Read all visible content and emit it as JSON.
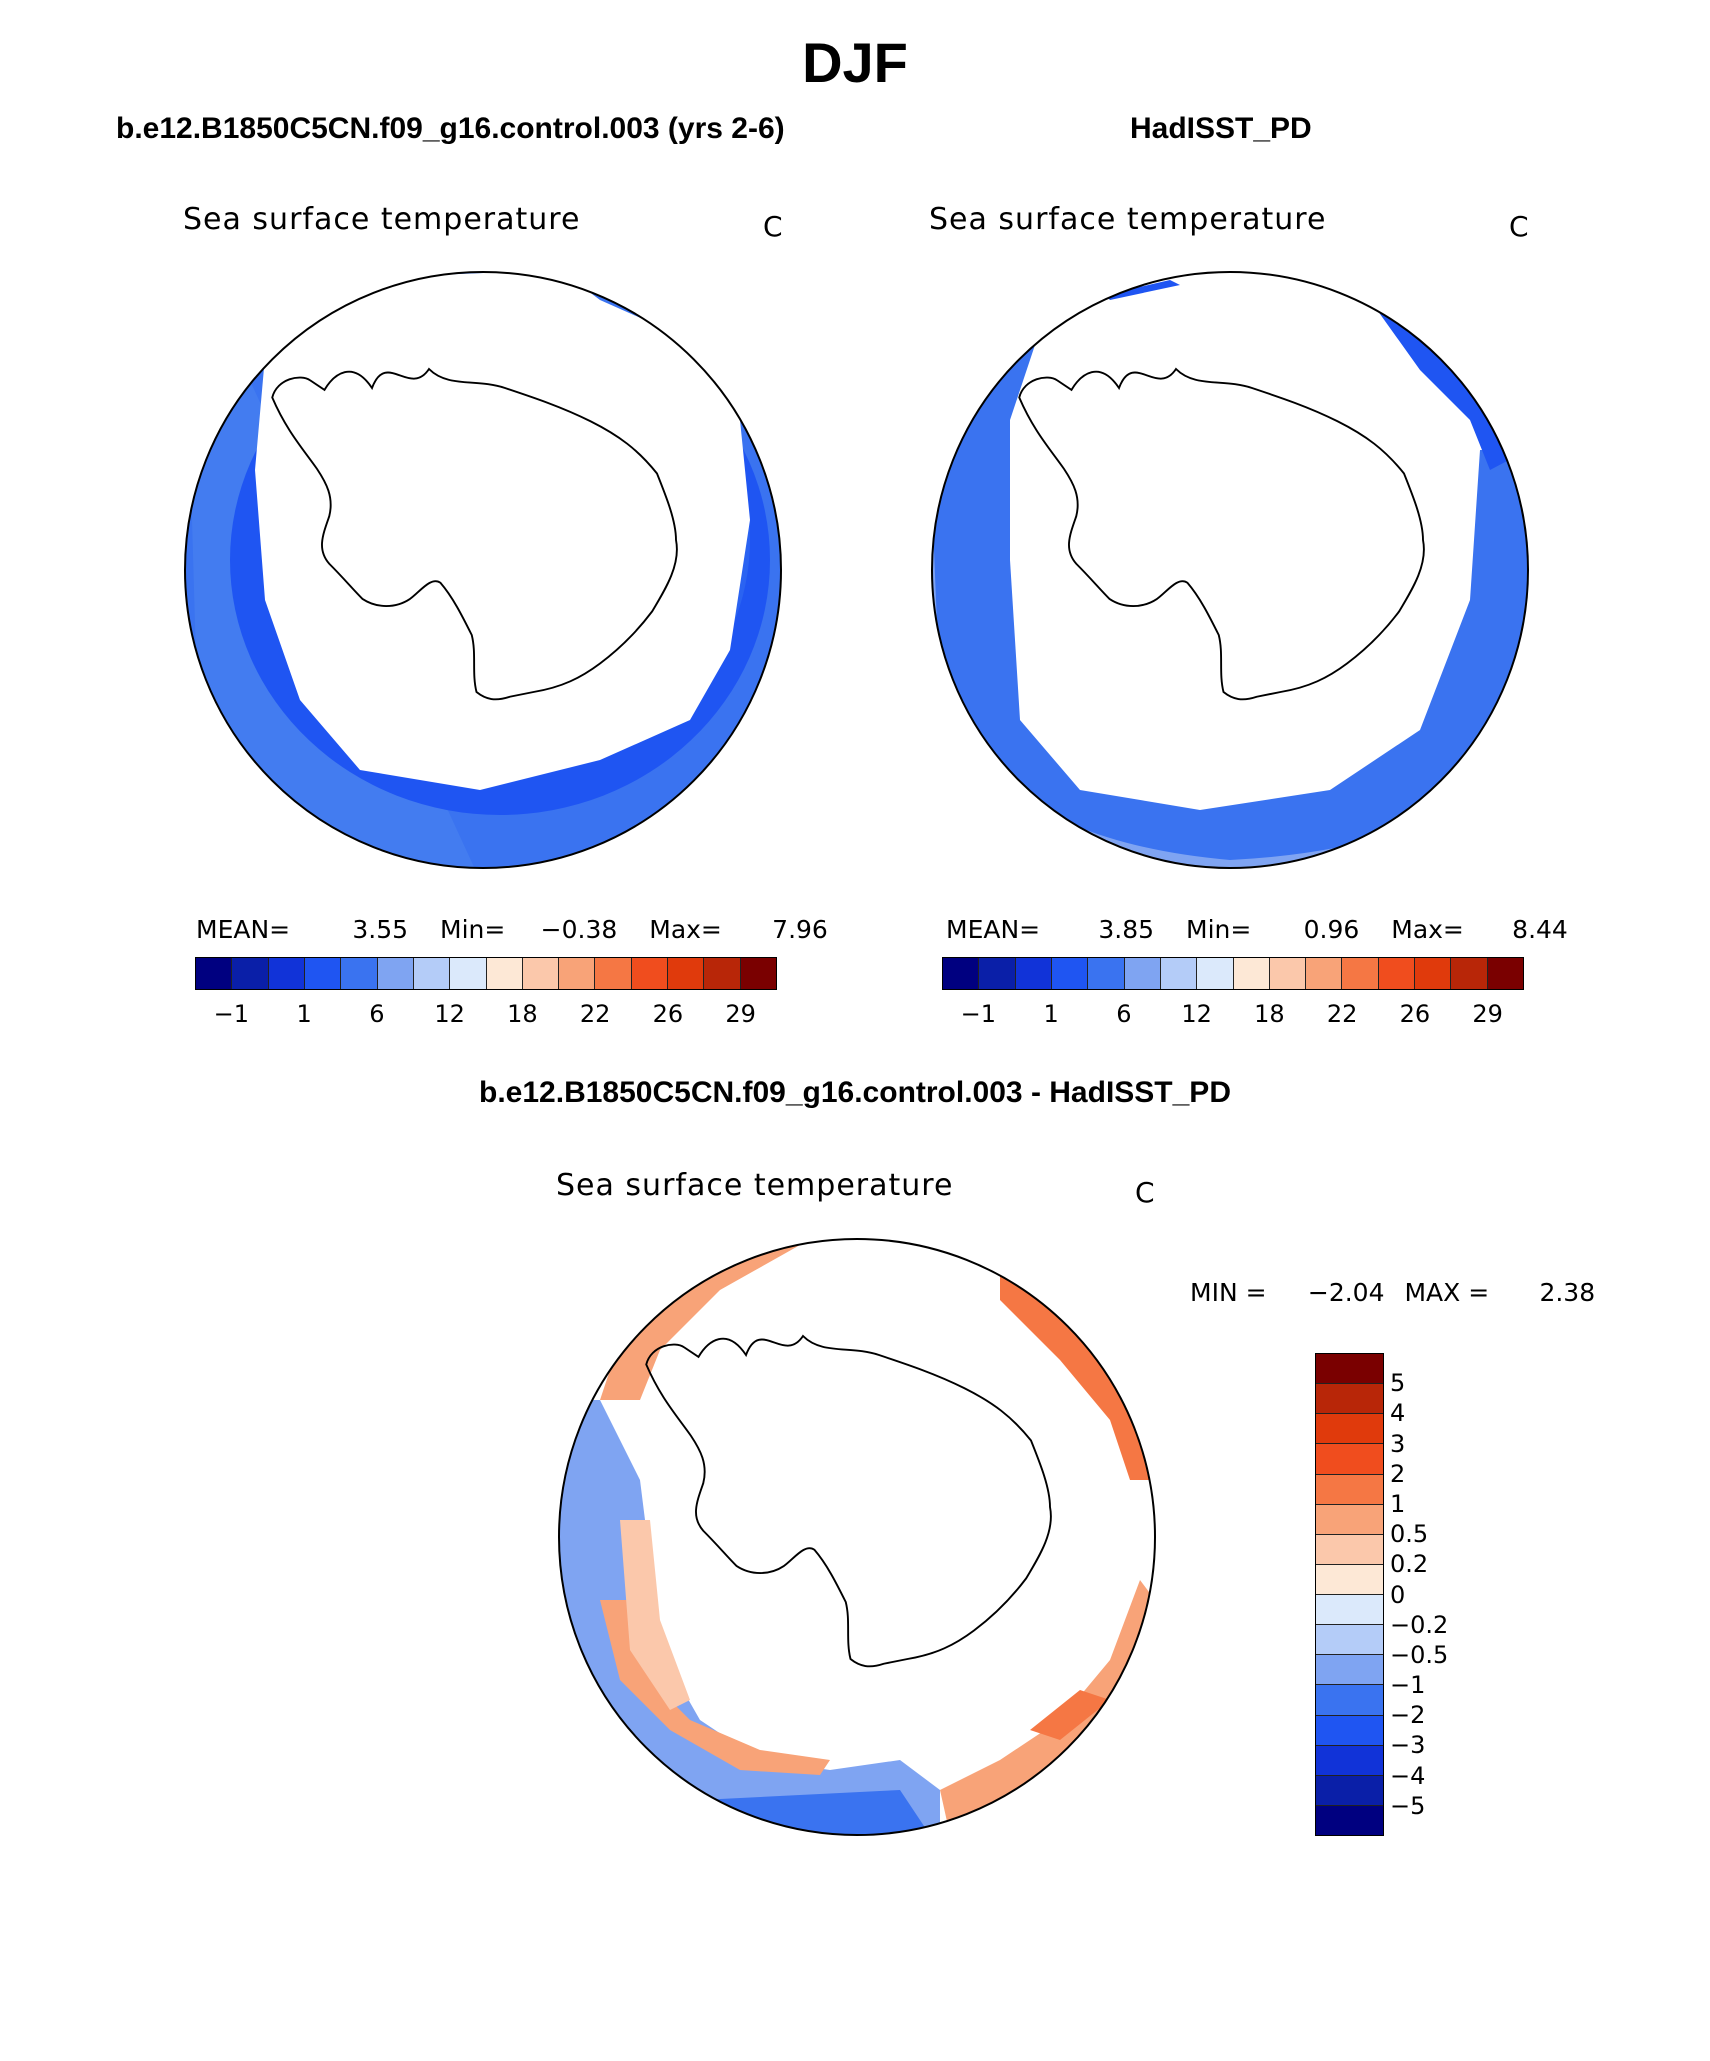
{
  "season": "DJF",
  "panels": [
    {
      "case_title": "b.e12.B1850C5CN.f09_g16.control.003 (yrs 2-6)",
      "var_title": "Sea surface temperature",
      "units": "C",
      "stats": {
        "mean_label": "MEAN=",
        "mean": "3.55",
        "min_label": "Min=",
        "min": "−0.38",
        "max_label": "Max=",
        "max": "7.96"
      },
      "colorbar_labels": [
        "−1",
        "1",
        "6",
        "12",
        "18",
        "22",
        "26",
        "29"
      ]
    },
    {
      "case_title": "HadISST_PD",
      "var_title": "Sea surface temperature",
      "units": "C",
      "stats": {
        "mean_label": "MEAN=",
        "mean": "3.85",
        "min_label": "Min=",
        "min": "0.96",
        "max_label": "Max=",
        "max": "8.44"
      },
      "colorbar_labels": [
        "−1",
        "1",
        "6",
        "12",
        "18",
        "22",
        "26",
        "29"
      ]
    }
  ],
  "diff": {
    "case_title": "b.e12.B1850C5CN.f09_g16.control.003 - HadISST_PD",
    "var_title": "Sea surface temperature",
    "units": "C",
    "min_label": "MIN =",
    "min": "−2.04",
    "max_label": "MAX =",
    "max": "2.38",
    "colorbar_labels": [
      "5",
      "4",
      "3",
      "2",
      "1",
      "0.5",
      "0.2",
      "0",
      "−0.2",
      "−0.5",
      "−1",
      "−2",
      "−3",
      "−4",
      "−5"
    ]
  },
  "colors": {
    "abs_scale": [
      "#000080",
      "#0a1fa8",
      "#1133d8",
      "#1f55f2",
      "#3a73f0",
      "#7fa4f2",
      "#b4ccf8",
      "#dbe9fb",
      "#fde8d6",
      "#fbc8ab",
      "#f8a378",
      "#f57744",
      "#f04d1e",
      "#e03a0c",
      "#b82608",
      "#7a0000"
    ],
    "diff_scale": [
      "#7a0000",
      "#b82608",
      "#e03a0c",
      "#f04d1e",
      "#f57744",
      "#f8a378",
      "#fbc8ab",
      "#fde8d6",
      "#dbe9fb",
      "#b4ccf8",
      "#7fa4f2",
      "#3a73f0",
      "#1f55f2",
      "#1133d8",
      "#0a1fa8",
      "#000080"
    ]
  }
}
